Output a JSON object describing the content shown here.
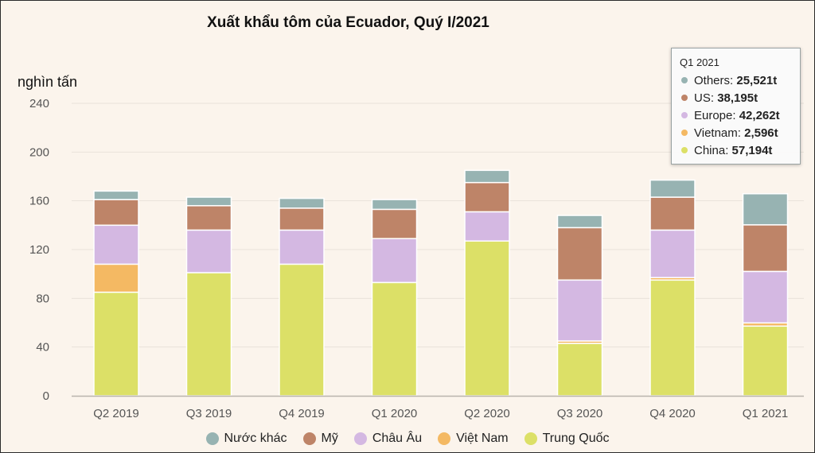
{
  "title": "Xuất khẩu tôm của Ecuador, Quý I/2021",
  "colors": {
    "background": "#fbf4ec",
    "grid": "#e9e2da",
    "axis": "#b9b3ad",
    "text": "#555555"
  },
  "legend": [
    {
      "label": "Nước khác",
      "color": "#97b3b2"
    },
    {
      "label": "Mỹ",
      "color": "#be8468"
    },
    {
      "label": "Châu Âu",
      "color": "#d4b8e2"
    },
    {
      "label": "Việt Nam",
      "color": "#f4b963"
    },
    {
      "label": "Trung Quốc",
      "color": "#dce067"
    }
  ],
  "tooltip": {
    "header": "Q1 2021",
    "rows": [
      {
        "name": "Others",
        "value": "25,521t",
        "color": "#97b3b2"
      },
      {
        "name": "US",
        "value": "38,195t",
        "color": "#be8468"
      },
      {
        "name": "Europe",
        "value": "42,262t",
        "color": "#d4b8e2"
      },
      {
        "name": "Vietnam",
        "value": "2,596t",
        "color": "#f4b963"
      },
      {
        "name": "China",
        "value": "57,194t",
        "color": "#dce067"
      }
    ]
  },
  "chart_data": {
    "type": "bar",
    "stacked": true,
    "ylabel": "nghìn tấn",
    "ylim": [
      0,
      240
    ],
    "yticks": [
      0,
      40,
      80,
      120,
      160,
      200,
      240
    ],
    "grid": true,
    "categories": [
      "Q2 2019",
      "Q3 2019",
      "Q4 2019",
      "Q1 2020",
      "Q2 2020",
      "Q3 2020",
      "Q4 2020",
      "Q1 2021"
    ],
    "series": [
      {
        "name": "Trung Quốc",
        "color": "#dce067",
        "values": [
          85,
          101,
          108,
          93,
          127,
          43,
          95,
          57.2
        ]
      },
      {
        "name": "Việt Nam",
        "color": "#f4b963",
        "values": [
          23,
          0,
          0,
          0,
          0,
          2,
          2,
          2.6
        ]
      },
      {
        "name": "Châu Âu",
        "color": "#d4b8e2",
        "values": [
          32,
          35,
          28,
          36,
          24,
          50,
          39,
          42.3
        ]
      },
      {
        "name": "Mỹ",
        "color": "#be8468",
        "values": [
          21,
          20,
          18,
          24,
          24,
          43,
          27,
          38.2
        ]
      },
      {
        "name": "Nước khác",
        "color": "#97b3b2",
        "values": [
          7,
          7,
          8,
          8,
          10,
          10,
          14,
          25.5
        ]
      }
    ]
  }
}
